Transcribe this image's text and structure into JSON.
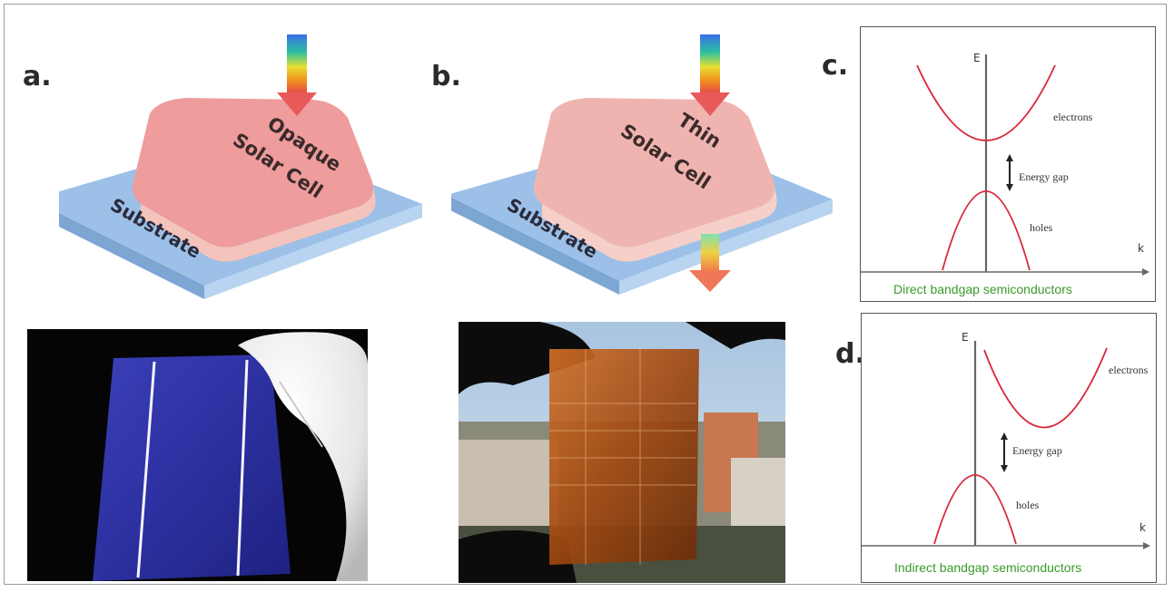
{
  "panels": {
    "a": {
      "label": "a.",
      "cell_line1": "Opaque",
      "cell_line2": "Solar Cell",
      "substrate": "Substrate"
    },
    "b": {
      "label": "b.",
      "cell_line1": "Thin",
      "cell_line2": "Solar Cell",
      "substrate": "Substrate"
    },
    "c": {
      "label": "c.",
      "axis_e": "E",
      "axis_k": "k",
      "electrons": "electrons",
      "gap": "Energy gap",
      "holes": "holes",
      "caption": "Direct bandgap semiconductors"
    },
    "d": {
      "label": "d.",
      "axis_e": "E",
      "axis_k": "k",
      "electrons": "electrons",
      "gap": "Energy gap",
      "holes": "holes",
      "caption": "Indirect bandgap semiconductors"
    }
  },
  "colors": {
    "cell_pink": "#e8a4a4",
    "substrate_blue": "#9cc0e8",
    "curve_red": "#d8283c",
    "caption_green": "#3a9a2a",
    "wafer_blue": "#2a2fa0"
  }
}
